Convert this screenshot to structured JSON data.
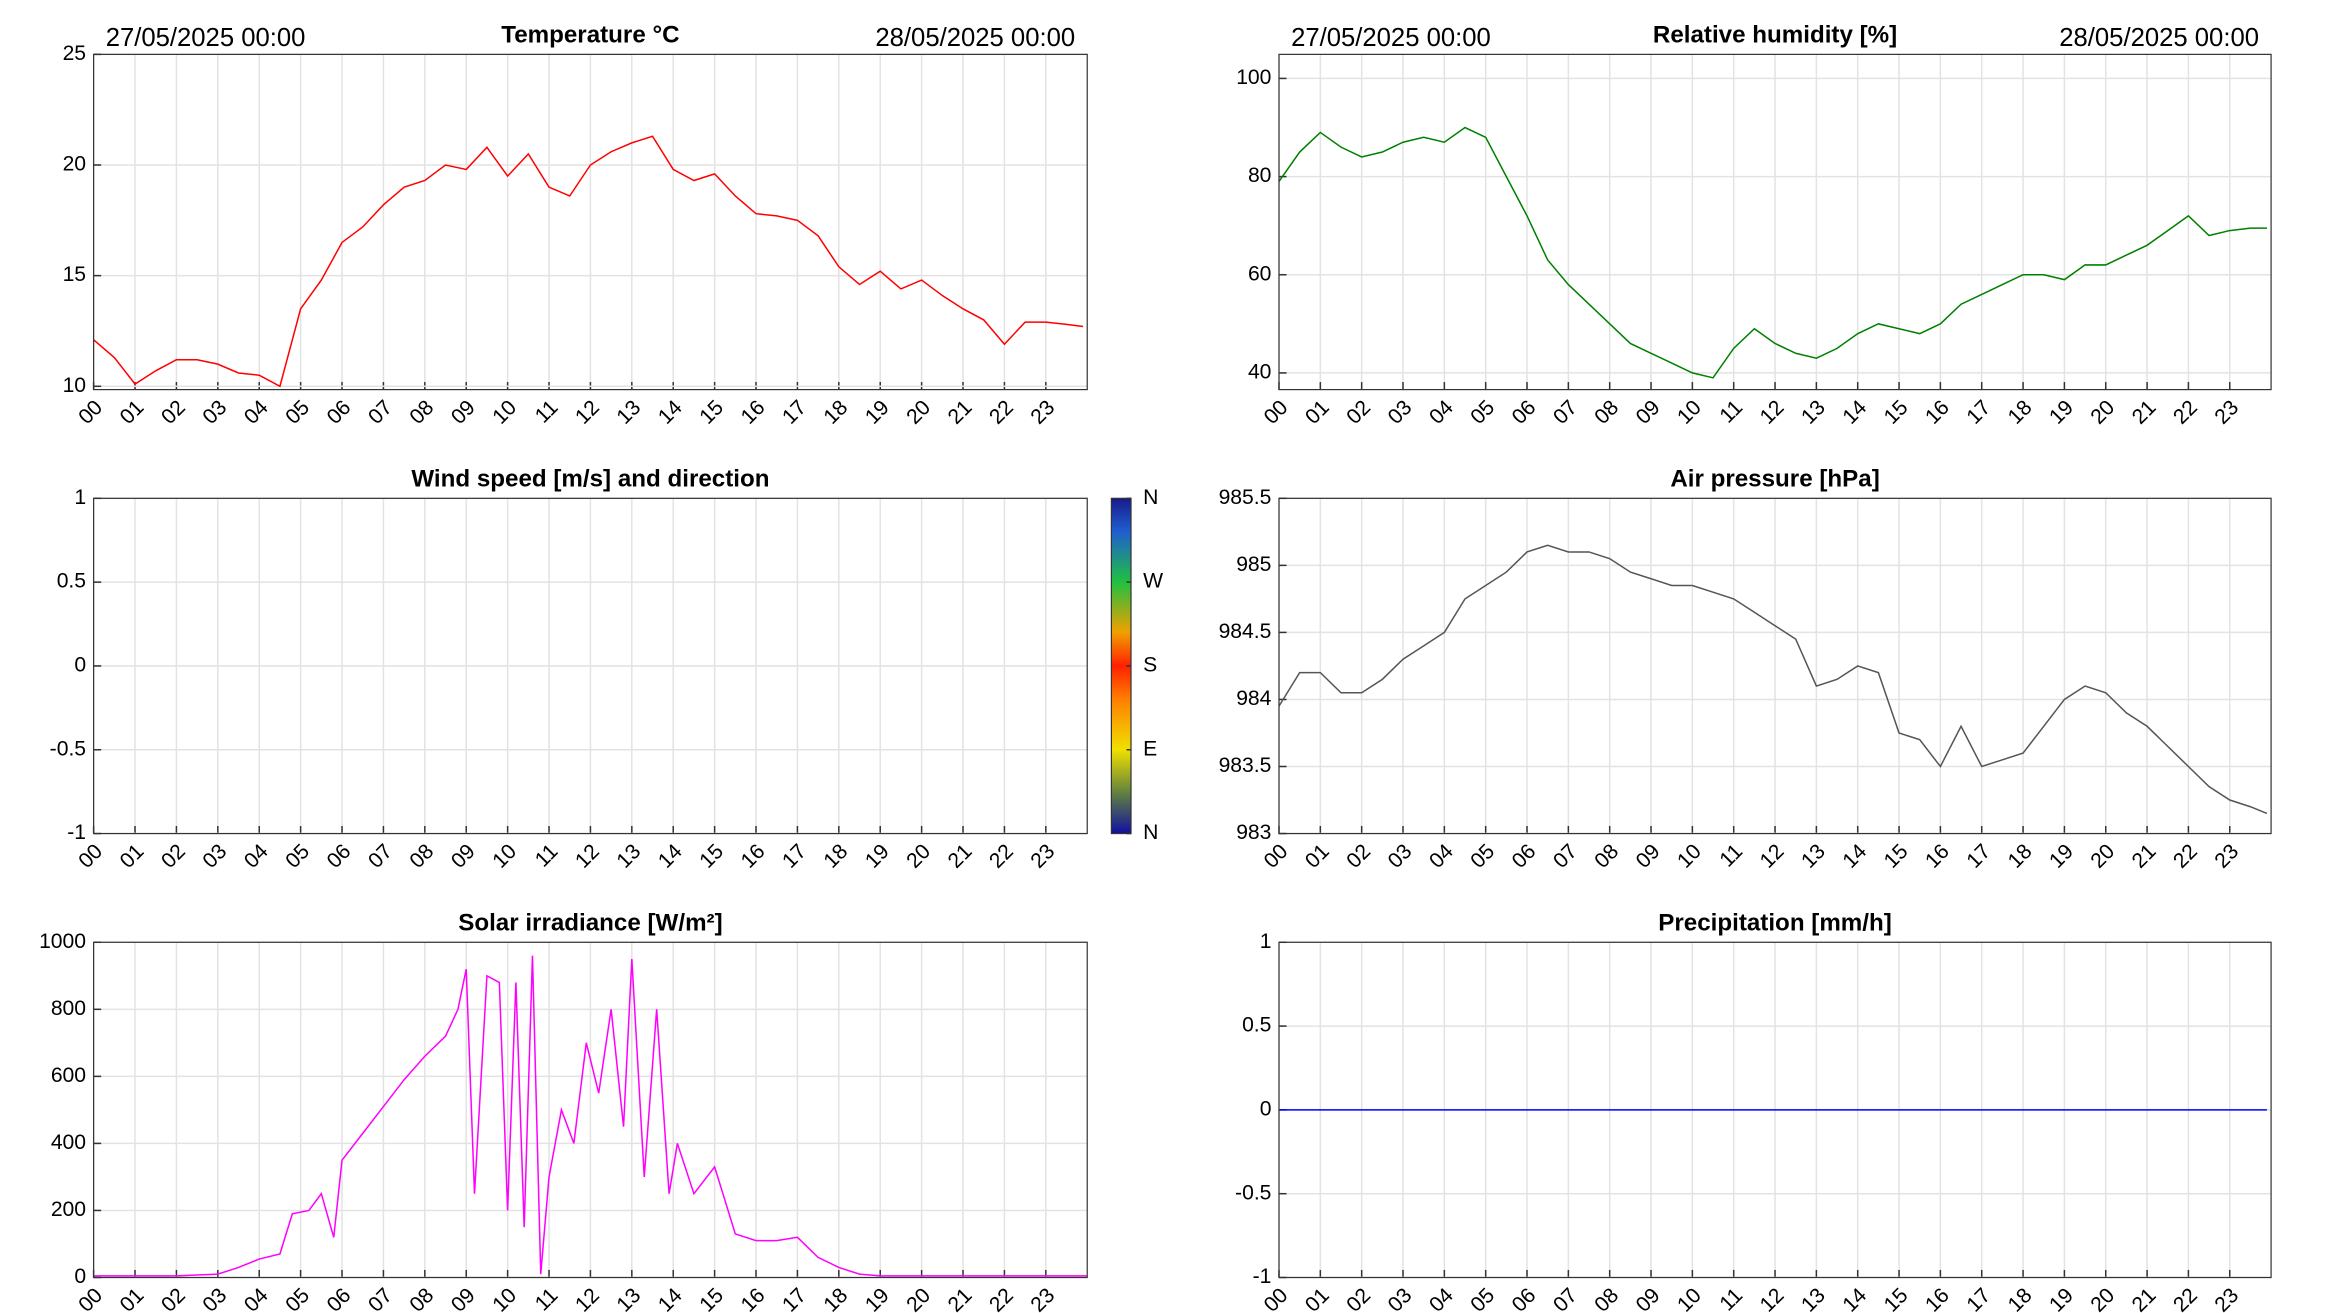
{
  "chart_data": [
    {
      "type": "line",
      "title": "Temperature °C",
      "start_label": "27/05/2025 00:00",
      "end_label": "28/05/2025 00:00",
      "x": [
        0,
        0.5,
        1,
        1.5,
        2,
        2.5,
        3,
        3.5,
        4,
        4.5,
        5,
        5.5,
        6,
        6.5,
        7,
        7.5,
        8,
        8.5,
        9,
        9.5,
        10,
        10.5,
        11,
        11.5,
        12,
        12.5,
        13,
        13.5,
        14,
        14.5,
        15,
        15.5,
        16,
        16.5,
        17,
        17.5,
        18,
        18.5,
        19,
        19.5,
        20,
        20.5,
        21,
        21.5,
        22,
        22.5,
        23,
        23.5,
        23.9
      ],
      "series": [
        {
          "color": "#ff0000",
          "values": [
            12.1,
            11.3,
            10.1,
            10.7,
            11.2,
            11.2,
            11.0,
            10.6,
            10.5,
            10.0,
            13.5,
            14.8,
            16.5,
            17.2,
            18.2,
            19.0,
            19.3,
            20.0,
            19.8,
            20.8,
            19.5,
            20.5,
            19.0,
            18.6,
            20.0,
            20.6,
            21.0,
            21.3,
            19.8,
            19.3,
            19.6,
            18.6,
            17.8,
            17.7,
            17.5,
            16.8,
            15.4,
            14.6,
            15.2,
            14.4,
            14.8,
            14.1,
            13.5,
            13.0,
            11.9,
            12.9,
            12.9,
            12.8,
            12.7
          ]
        }
      ],
      "xlim": [
        0,
        24
      ],
      "ylim": [
        9.85,
        25
      ],
      "yticks": [
        10,
        15,
        20,
        25
      ],
      "grid": true,
      "xticks": [
        {
          "value": 0,
          "label": "00"
        },
        {
          "value": 1,
          "label": "01"
        },
        {
          "value": 2,
          "label": "02"
        },
        {
          "value": 3,
          "label": "03"
        },
        {
          "value": 4,
          "label": "04"
        },
        {
          "value": 5,
          "label": "05"
        },
        {
          "value": 6,
          "label": "06"
        },
        {
          "value": 7,
          "label": "07"
        },
        {
          "value": 8,
          "label": "08"
        },
        {
          "value": 9,
          "label": "09"
        },
        {
          "value": 10,
          "label": "10"
        },
        {
          "value": 11,
          "label": "11"
        },
        {
          "value": 12,
          "label": "12"
        },
        {
          "value": 13,
          "label": "13"
        },
        {
          "value": 14,
          "label": "14"
        },
        {
          "value": 15,
          "label": "15"
        },
        {
          "value": 16,
          "label": "16"
        },
        {
          "value": 17,
          "label": "17"
        },
        {
          "value": 18,
          "label": "18"
        },
        {
          "value": 19,
          "label": "19"
        },
        {
          "value": 20,
          "label": "20"
        },
        {
          "value": 21,
          "label": "21"
        },
        {
          "value": 22,
          "label": "22"
        },
        {
          "value": 23,
          "label": "23"
        }
      ]
    },
    {
      "type": "line",
      "title": "Relative humidity [%]",
      "start_label": "27/05/2025 00:00",
      "end_label": "28/05/2025 00:00",
      "x": [
        0,
        0.5,
        1,
        1.5,
        2,
        2.5,
        3,
        3.5,
        4,
        4.5,
        5,
        5.5,
        6,
        6.5,
        7,
        7.5,
        8,
        8.5,
        9,
        9.5,
        10,
        10.5,
        11,
        11.5,
        12,
        12.5,
        13,
        13.5,
        14,
        14.5,
        15,
        15.5,
        16,
        16.5,
        17,
        17.5,
        18,
        18.5,
        19,
        19.5,
        20,
        20.5,
        21,
        21.5,
        22,
        22.5,
        23,
        23.5,
        23.9
      ],
      "series": [
        {
          "color": "#008000",
          "values": [
            79,
            85,
            89,
            86,
            84,
            85,
            87,
            88,
            87,
            90,
            88,
            80,
            72,
            63,
            58,
            54,
            50,
            46,
            44,
            42,
            40,
            39,
            45,
            49,
            46,
            44,
            43,
            45,
            48,
            50,
            49,
            48,
            50,
            54,
            56,
            58,
            60,
            60,
            59,
            62,
            62,
            64,
            66,
            69,
            72,
            68,
            69,
            69.5,
            69.5
          ]
        }
      ],
      "xlim": [
        0,
        24
      ],
      "ylim": [
        36.6,
        104.9
      ],
      "yticks": [
        40,
        60,
        80,
        100
      ],
      "grid": true,
      "xticks": [
        {
          "value": 0,
          "label": "00"
        },
        {
          "value": 1,
          "label": "01"
        },
        {
          "value": 2,
          "label": "02"
        },
        {
          "value": 3,
          "label": "03"
        },
        {
          "value": 4,
          "label": "04"
        },
        {
          "value": 5,
          "label": "05"
        },
        {
          "value": 6,
          "label": "06"
        },
        {
          "value": 7,
          "label": "07"
        },
        {
          "value": 8,
          "label": "08"
        },
        {
          "value": 9,
          "label": "09"
        },
        {
          "value": 10,
          "label": "10"
        },
        {
          "value": 11,
          "label": "11"
        },
        {
          "value": 12,
          "label": "12"
        },
        {
          "value": 13,
          "label": "13"
        },
        {
          "value": 14,
          "label": "14"
        },
        {
          "value": 15,
          "label": "15"
        },
        {
          "value": 16,
          "label": "16"
        },
        {
          "value": 17,
          "label": "17"
        },
        {
          "value": 18,
          "label": "18"
        },
        {
          "value": 19,
          "label": "19"
        },
        {
          "value": 20,
          "label": "20"
        },
        {
          "value": 21,
          "label": "21"
        },
        {
          "value": 22,
          "label": "22"
        },
        {
          "value": 23,
          "label": "23"
        }
      ]
    },
    {
      "type": "line",
      "title": "Wind speed [m/s] and direction",
      "x": [],
      "series": [
        {
          "values": []
        }
      ],
      "colorbar": {
        "lim": [
          0,
          360
        ],
        "ticks": [
          {
            "value": 360,
            "label": "N"
          },
          {
            "value": 270,
            "label": "W"
          },
          {
            "value": 180,
            "label": "S"
          },
          {
            "value": 90,
            "label": "E"
          },
          {
            "value": 0,
            "label": "N"
          }
        ]
      },
      "xlim": [
        0,
        24
      ],
      "ylim": [
        -1,
        1
      ],
      "yticks": [
        -1,
        -0.5,
        0,
        0.5,
        1
      ],
      "grid": true,
      "xticks": [
        {
          "value": 0,
          "label": "00"
        },
        {
          "value": 1,
          "label": "01"
        },
        {
          "value": 2,
          "label": "02"
        },
        {
          "value": 3,
          "label": "03"
        },
        {
          "value": 4,
          "label": "04"
        },
        {
          "value": 5,
          "label": "05"
        },
        {
          "value": 6,
          "label": "06"
        },
        {
          "value": 7,
          "label": "07"
        },
        {
          "value": 8,
          "label": "08"
        },
        {
          "value": 9,
          "label": "09"
        },
        {
          "value": 10,
          "label": "10"
        },
        {
          "value": 11,
          "label": "11"
        },
        {
          "value": 12,
          "label": "12"
        },
        {
          "value": 13,
          "label": "13"
        },
        {
          "value": 14,
          "label": "14"
        },
        {
          "value": 15,
          "label": "15"
        },
        {
          "value": 16,
          "label": "16"
        },
        {
          "value": 17,
          "label": "17"
        },
        {
          "value": 18,
          "label": "18"
        },
        {
          "value": 19,
          "label": "19"
        },
        {
          "value": 20,
          "label": "20"
        },
        {
          "value": 21,
          "label": "21"
        },
        {
          "value": 22,
          "label": "22"
        },
        {
          "value": 23,
          "label": "23"
        }
      ]
    },
    {
      "type": "line",
      "title": "Air pressure [hPa]",
      "x": [
        0,
        0.5,
        1,
        1.5,
        2,
        2.5,
        3,
        3.5,
        4,
        4.5,
        5,
        5.5,
        6,
        6.5,
        7,
        7.5,
        8,
        8.5,
        9,
        9.5,
        10,
        10.5,
        11,
        11.5,
        12,
        12.5,
        13,
        13.5,
        14,
        14.5,
        15,
        15.5,
        16,
        16.5,
        17,
        17.5,
        18,
        18.5,
        19,
        19.5,
        20,
        20.5,
        21,
        21.5,
        22,
        22.5,
        23,
        23.5,
        23.9
      ],
      "series": [
        {
          "color": "#555555",
          "values": [
            983.95,
            984.2,
            984.2,
            984.05,
            984.05,
            984.15,
            984.3,
            984.4,
            984.5,
            984.75,
            984.85,
            984.95,
            985.1,
            985.15,
            985.1,
            985.1,
            985.05,
            984.95,
            984.9,
            984.85,
            984.85,
            984.8,
            984.75,
            984.65,
            984.55,
            984.45,
            984.1,
            984.15,
            984.25,
            984.2,
            983.75,
            983.7,
            983.5,
            983.8,
            983.5,
            983.55,
            983.6,
            983.8,
            984.0,
            984.1,
            984.05,
            983.9,
            983.8,
            983.65,
            983.5,
            983.35,
            983.25,
            983.2,
            983.15
          ]
        }
      ],
      "xlim": [
        0,
        24
      ],
      "ylim": [
        983,
        985.5
      ],
      "yticks": [
        983,
        983.5,
        984,
        984.5,
        985,
        985.5
      ],
      "grid": true,
      "xticks": [
        {
          "value": 0,
          "label": "00"
        },
        {
          "value": 1,
          "label": "01"
        },
        {
          "value": 2,
          "label": "02"
        },
        {
          "value": 3,
          "label": "03"
        },
        {
          "value": 4,
          "label": "04"
        },
        {
          "value": 5,
          "label": "05"
        },
        {
          "value": 6,
          "label": "06"
        },
        {
          "value": 7,
          "label": "07"
        },
        {
          "value": 8,
          "label": "08"
        },
        {
          "value": 9,
          "label": "09"
        },
        {
          "value": 10,
          "label": "10"
        },
        {
          "value": 11,
          "label": "11"
        },
        {
          "value": 12,
          "label": "12"
        },
        {
          "value": 13,
          "label": "13"
        },
        {
          "value": 14,
          "label": "14"
        },
        {
          "value": 15,
          "label": "15"
        },
        {
          "value": 16,
          "label": "16"
        },
        {
          "value": 17,
          "label": "17"
        },
        {
          "value": 18,
          "label": "18"
        },
        {
          "value": 19,
          "label": "19"
        },
        {
          "value": 20,
          "label": "20"
        },
        {
          "value": 21,
          "label": "21"
        },
        {
          "value": 22,
          "label": "22"
        },
        {
          "value": 23,
          "label": "23"
        }
      ]
    },
    {
      "type": "line",
      "title": "Solar irradiance [W/m²]",
      "x": [
        0,
        1,
        2,
        3,
        3.5,
        4,
        4.5,
        4.8,
        5.2,
        5.5,
        5.8,
        6,
        6.5,
        7,
        7.5,
        8,
        8.5,
        8.8,
        9,
        9.2,
        9.5,
        9.8,
        10,
        10.2,
        10.4,
        10.6,
        10.8,
        11,
        11.3,
        11.6,
        11.9,
        12.2,
        12.5,
        12.8,
        13,
        13.3,
        13.6,
        13.9,
        14.1,
        14.5,
        15,
        15.5,
        16,
        16.5,
        17,
        17.5,
        18,
        18.5,
        19,
        24
      ],
      "series": [
        {
          "color": "#ff00ff",
          "values": [
            5,
            5,
            5,
            10,
            30,
            55,
            70,
            190,
            200,
            250,
            120,
            350,
            430,
            510,
            590,
            660,
            720,
            800,
            920,
            250,
            900,
            880,
            200,
            880,
            150,
            960,
            10,
            300,
            500,
            400,
            700,
            550,
            800,
            450,
            950,
            300,
            800,
            250,
            400,
            250,
            330,
            130,
            110,
            110,
            120,
            60,
            30,
            10,
            5,
            5
          ]
        }
      ],
      "xlim": [
        0,
        24
      ],
      "ylim": [
        0,
        1000
      ],
      "yticks": [
        0,
        200,
        400,
        600,
        800,
        1000
      ],
      "grid": true,
      "xticks": [
        {
          "value": 0,
          "label": "00"
        },
        {
          "value": 1,
          "label": "01"
        },
        {
          "value": 2,
          "label": "02"
        },
        {
          "value": 3,
          "label": "03"
        },
        {
          "value": 4,
          "label": "04"
        },
        {
          "value": 5,
          "label": "05"
        },
        {
          "value": 6,
          "label": "06"
        },
        {
          "value": 7,
          "label": "07"
        },
        {
          "value": 8,
          "label": "08"
        },
        {
          "value": 9,
          "label": "09"
        },
        {
          "value": 10,
          "label": "10"
        },
        {
          "value": 11,
          "label": "11"
        },
        {
          "value": 12,
          "label": "12"
        },
        {
          "value": 13,
          "label": "13"
        },
        {
          "value": 14,
          "label": "14"
        },
        {
          "value": 15,
          "label": "15"
        },
        {
          "value": 16,
          "label": "16"
        },
        {
          "value": 17,
          "label": "17"
        },
        {
          "value": 18,
          "label": "18"
        },
        {
          "value": 19,
          "label": "19"
        },
        {
          "value": 20,
          "label": "20"
        },
        {
          "value": 21,
          "label": "21"
        },
        {
          "value": 22,
          "label": "22"
        },
        {
          "value": 23,
          "label": "23"
        }
      ]
    },
    {
      "type": "line",
      "title": "Precipitation [mm/h]",
      "x": [
        0,
        23.9
      ],
      "series": [
        {
          "color": "#0000ff",
          "values": [
            0,
            0
          ]
        }
      ],
      "xlim": [
        0,
        24
      ],
      "ylim": [
        -1,
        1
      ],
      "yticks": [
        -1,
        -0.5,
        0,
        0.5,
        1
      ],
      "grid": true,
      "xticks": [
        {
          "value": 0,
          "label": "00"
        },
        {
          "value": 1,
          "label": "01"
        },
        {
          "value": 2,
          "label": "02"
        },
        {
          "value": 3,
          "label": "03"
        },
        {
          "value": 4,
          "label": "04"
        },
        {
          "value": 5,
          "label": "05"
        },
        {
          "value": 6,
          "label": "06"
        },
        {
          "value": 7,
          "label": "07"
        },
        {
          "value": 8,
          "label": "08"
        },
        {
          "value": 9,
          "label": "09"
        },
        {
          "value": 10,
          "label": "10"
        },
        {
          "value": 11,
          "label": "11"
        },
        {
          "value": 12,
          "label": "12"
        },
        {
          "value": 13,
          "label": "13"
        },
        {
          "value": 14,
          "label": "14"
        },
        {
          "value": 15,
          "label": "15"
        },
        {
          "value": 16,
          "label": "16"
        },
        {
          "value": 17,
          "label": "17"
        },
        {
          "value": 18,
          "label": "18"
        },
        {
          "value": 19,
          "label": "19"
        },
        {
          "value": 20,
          "label": "20"
        },
        {
          "value": 21,
          "label": "21"
        },
        {
          "value": 22,
          "label": "22"
        },
        {
          "value": 23,
          "label": "23"
        }
      ]
    }
  ]
}
